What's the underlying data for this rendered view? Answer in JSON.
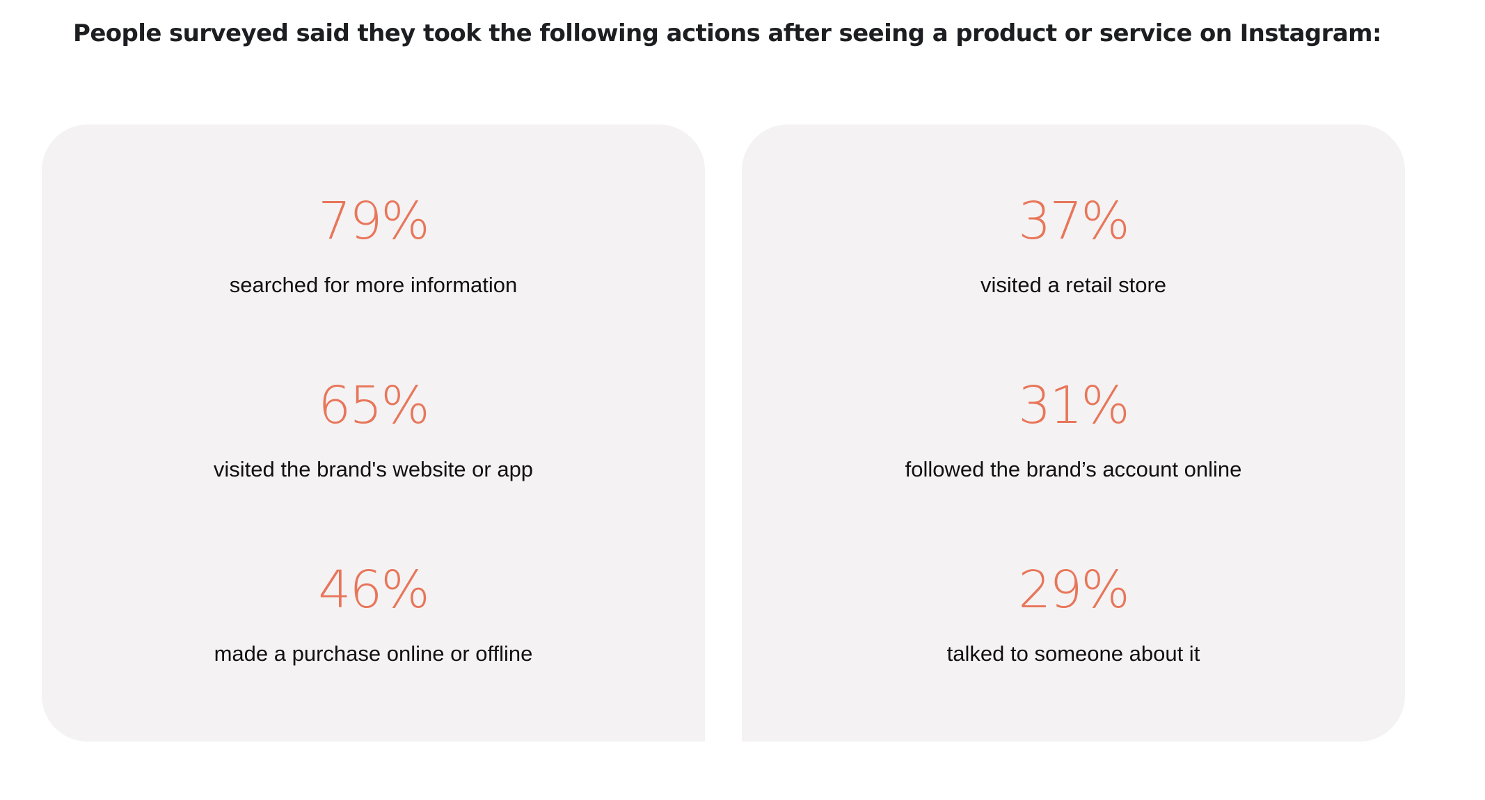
{
  "headline": "People surveyed said they took the following actions after seeing a product or service on Instagram:",
  "colors": {
    "accent": "#e8765a",
    "card_background": "#f4f2f3",
    "text": "#111111"
  },
  "cards": [
    {
      "stats": [
        {
          "value": "79%",
          "label": "searched for more information"
        },
        {
          "value": "65%",
          "label": "visited the brand's website or app"
        },
        {
          "value": "46%",
          "label": "made a purchase online or offline"
        }
      ]
    },
    {
      "stats": [
        {
          "value": "37%",
          "label": "visited a retail store"
        },
        {
          "value": "31%",
          "label": "followed the brand’s account online"
        },
        {
          "value": "29%",
          "label": "talked to someone about it"
        }
      ]
    }
  ]
}
